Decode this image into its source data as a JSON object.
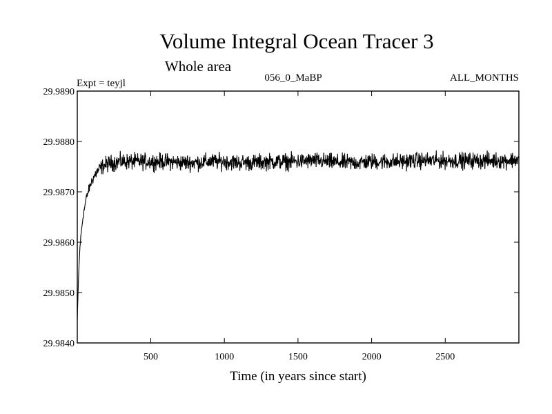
{
  "chart_data": {
    "type": "line",
    "title": "Volume Integral Ocean Tracer 3",
    "subtitle": "Whole area",
    "header_left": "Expt = teyjl",
    "header_center": "056_0_MaBP",
    "header_right": "ALL_MONTHS",
    "xlabel": "Time (in years since start)",
    "ylabel": "",
    "xlim": [
      1,
      3000
    ],
    "ylim": [
      29.984,
      29.989
    ],
    "xticks": [
      500,
      1000,
      1500,
      2000,
      2500
    ],
    "xtick_labels": [
      "500",
      "1000",
      "1500",
      "2000",
      "2500"
    ],
    "yticks": [
      29.984,
      29.985,
      29.986,
      29.987,
      29.988,
      29.989
    ],
    "ytick_labels": [
      "29.9840",
      "29.9850",
      "29.9860",
      "29.9870",
      "29.9880",
      "29.9890"
    ],
    "grid": false,
    "series": [
      {
        "name": "Volume Integral Ocean Tracer 3",
        "x": [
          1,
          10,
          20,
          30,
          40,
          60,
          80,
          100,
          130,
          160,
          200,
          250,
          300,
          400,
          500,
          600,
          700,
          800,
          900,
          1000,
          1100,
          1200,
          1300,
          1400,
          1500,
          1600,
          1700,
          1800,
          1900,
          2000,
          2100,
          2200,
          2300,
          2400,
          2500,
          2600,
          2700,
          2800,
          2900,
          3000
        ],
        "values": [
          29.98445,
          29.98535,
          29.98595,
          29.98625,
          29.9865,
          29.98685,
          29.98705,
          29.98722,
          29.98738,
          29.98748,
          29.98755,
          29.98758,
          29.9876,
          29.9876,
          29.9876,
          29.9876,
          29.98758,
          29.98758,
          29.9876,
          29.9876,
          29.98758,
          29.98758,
          29.9876,
          29.9876,
          29.9876,
          29.98762,
          29.9876,
          29.98758,
          29.98758,
          29.9876,
          29.9876,
          29.9876,
          29.98762,
          29.98762,
          29.98762,
          29.98762,
          29.98762,
          29.98762,
          29.98762,
          29.98764
        ],
        "noise_amplitude": 0.00016,
        "color": "#000000"
      }
    ]
  }
}
